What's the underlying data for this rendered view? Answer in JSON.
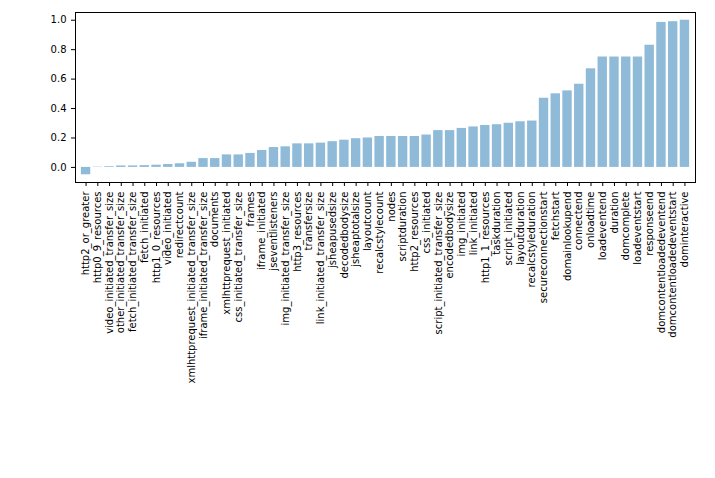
{
  "chart_data": {
    "type": "bar",
    "categories": [
      "http2_or_greater",
      "http0_9_resources",
      "video_initiated_transfer_size",
      "other_initiated_transfer_size",
      "fetch_initiated_transfer_size",
      "fetch_initiated",
      "http1_0_resources",
      "video_initiated",
      "redirectcount",
      "xmlhttprequest_initiated_transfer_size",
      "iframe_initiated_transfer_size",
      "documents",
      "xmlhttprequest_initiated",
      "css_initiated_transfer_size",
      "frames",
      "iframe_initiated",
      "jseventlisteners",
      "img_initiated_transfer_size",
      "http3_resources",
      "transfersize",
      "link_initiated_transfer_size",
      "jsheapusedsize",
      "decodedbodysize",
      "jsheaptotalsize",
      "layoutcount",
      "recalcstylecount",
      "nodes",
      "scriptduration",
      "http2_resources",
      "css_initiated",
      "script_initiated_transfer_size",
      "encodedbodysize",
      "img_initiated",
      "link_initiated",
      "http1_1_resources",
      "taskduration",
      "script_initiated",
      "layoutduration",
      "recalcstyleduration",
      "secureconnectionstart",
      "fetchstart",
      "domainlookupend",
      "connectend",
      "onloadtime",
      "loadeventend",
      "duration",
      "domcomplete",
      "loadeventstart",
      "responseend",
      "domcontentloadedeventend",
      "domcontentloadedeventstart",
      "dominteractive"
    ],
    "values": [
      -0.05,
      0.002,
      0.005,
      0.01,
      0.01,
      0.012,
      0.015,
      0.02,
      0.025,
      0.035,
      0.06,
      0.06,
      0.085,
      0.085,
      0.095,
      0.115,
      0.135,
      0.14,
      0.16,
      0.16,
      0.165,
      0.175,
      0.185,
      0.195,
      0.2,
      0.21,
      0.21,
      0.21,
      0.21,
      0.22,
      0.25,
      0.25,
      0.265,
      0.275,
      0.285,
      0.29,
      0.3,
      0.31,
      0.315,
      0.47,
      0.5,
      0.52,
      0.565,
      0.67,
      0.75,
      0.75,
      0.75,
      0.75,
      0.83,
      0.985,
      0.99,
      1.0
    ],
    "color": "#8fbbd9",
    "ylim": [
      -0.1025,
      1.0525
    ],
    "yticks": [
      {
        "value": 0,
        "label": "0.0"
      },
      {
        "value": 0.2,
        "label": "0.2"
      },
      {
        "value": 0.4,
        "label": "0.4"
      },
      {
        "value": 0.6,
        "label": "0.6"
      },
      {
        "value": 0.8,
        "label": "0.8"
      },
      {
        "value": 1.0,
        "label": "1.0"
      }
    ],
    "grid": false
  }
}
